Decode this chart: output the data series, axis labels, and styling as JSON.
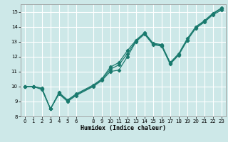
{
  "xlabel": "Humidex (Indice chaleur)",
  "background_color": "#cde8e8",
  "grid_color": "#ffffff",
  "line_color": "#1a7a6e",
  "xlim": [
    -0.5,
    23.5
  ],
  "ylim": [
    8,
    15.5
  ],
  "xticks": [
    0,
    1,
    2,
    3,
    4,
    5,
    6,
    8,
    9,
    10,
    11,
    12,
    13,
    14,
    15,
    16,
    17,
    18,
    19,
    20,
    21,
    22,
    23
  ],
  "yticks": [
    8,
    9,
    10,
    11,
    12,
    13,
    14,
    15
  ],
  "series1_x": [
    0,
    1,
    2,
    3,
    4,
    5,
    6,
    8,
    9,
    10,
    11,
    12,
    13,
    14,
    15,
    16,
    17,
    18,
    19,
    20,
    21,
    22,
    23
  ],
  "series1_y": [
    10.0,
    10.0,
    9.8,
    8.5,
    9.5,
    9.0,
    9.4,
    10.0,
    10.4,
    11.0,
    11.1,
    12.0,
    13.0,
    13.5,
    12.8,
    12.7,
    11.5,
    12.1,
    13.1,
    13.9,
    14.3,
    14.8,
    15.1
  ],
  "series2_x": [
    0,
    1,
    2,
    3,
    4,
    5,
    6,
    8,
    9,
    10,
    11,
    12,
    13,
    14,
    15,
    16,
    17,
    18,
    19,
    20,
    21,
    22,
    23
  ],
  "series2_y": [
    10.0,
    10.0,
    9.85,
    8.5,
    9.55,
    9.05,
    9.45,
    10.05,
    10.45,
    11.15,
    11.45,
    12.2,
    13.05,
    13.55,
    12.85,
    12.75,
    11.55,
    12.15,
    13.1,
    13.95,
    14.35,
    14.85,
    15.2
  ],
  "series3_x": [
    0,
    1,
    2,
    3,
    4,
    5,
    6,
    8,
    9,
    10,
    11,
    12,
    13,
    14,
    15,
    16,
    17,
    18,
    19,
    20,
    21,
    22,
    23
  ],
  "series3_y": [
    10.0,
    10.0,
    9.9,
    8.5,
    9.6,
    9.1,
    9.5,
    10.1,
    10.5,
    11.3,
    11.6,
    12.4,
    13.1,
    13.6,
    12.9,
    12.8,
    11.6,
    12.2,
    13.2,
    14.0,
    14.4,
    14.9,
    15.25
  ]
}
